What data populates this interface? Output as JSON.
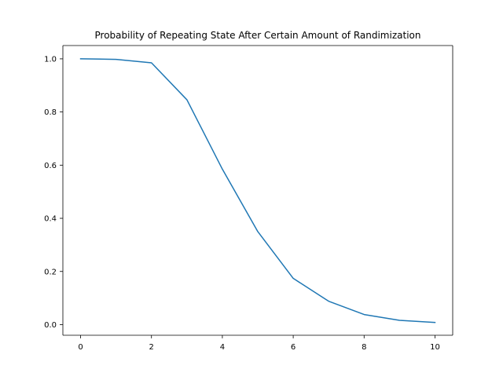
{
  "chart_data": {
    "type": "line",
    "title": "Probability of Repeating State After Certain Amount of Randimization",
    "xlabel": "",
    "ylabel": "",
    "x": [
      0,
      1,
      2,
      3,
      4,
      5,
      6,
      7,
      8,
      9,
      10
    ],
    "series": [
      {
        "values": [
          1.0,
          0.998,
          0.985,
          0.846,
          0.585,
          0.35,
          0.174,
          0.088,
          0.038,
          0.016,
          0.008
        ],
        "color": "#1f77b4"
      }
    ],
    "xlim": [
      -0.5,
      10.5
    ],
    "ylim": [
      -0.04,
      1.05
    ],
    "xticks": [
      0,
      2,
      4,
      6,
      8,
      10
    ],
    "xtick_labels": [
      "0",
      "2",
      "4",
      "6",
      "8",
      "10"
    ],
    "yticks": [
      0.0,
      0.2,
      0.4,
      0.6,
      0.8,
      1.0
    ],
    "ytick_labels": [
      "0.0",
      "0.2",
      "0.4",
      "0.6",
      "0.8",
      "1.0"
    ],
    "grid": false,
    "legend": false
  }
}
